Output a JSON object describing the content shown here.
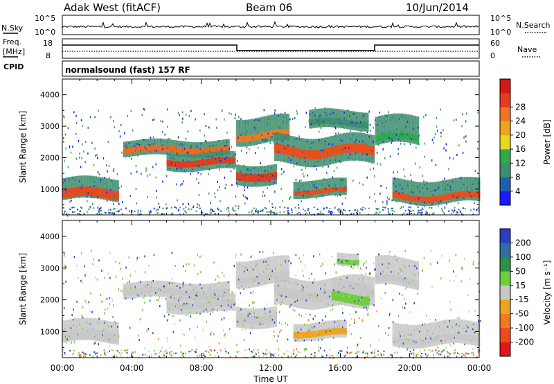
{
  "header": {
    "station": "Adak West (fitACF)",
    "beam": "Beam 06",
    "date": "10/Jun/2014"
  },
  "nsky_panel": {
    "left_label": "N.Sky",
    "left_ticks": [
      "10^5",
      "10^0"
    ],
    "right_ticks": [
      "10^5",
      "10^0"
    ],
    "right_label": "N.Search"
  },
  "freq_panel": {
    "left_label_1": "Freq.",
    "left_label_2": "[MHz]",
    "left_ticks": [
      "18",
      "8"
    ],
    "right_ticks": [
      "60",
      "0"
    ],
    "right_label": "Nave"
  },
  "cpid_panel": {
    "label": "CPID",
    "mode": "normalsound (fast) 157 RF"
  },
  "chart_data": [
    {
      "type": "heatmap",
      "name": "power",
      "ylabel": "Slant Range [km]",
      "xlabel": "",
      "ylim": [
        180,
        4500
      ],
      "yticks": [
        "1000",
        "2000",
        "3000",
        "4000"
      ],
      "xticks": [
        "00:00",
        "04:00",
        "08:00",
        "12:00",
        "16:00",
        "20:00",
        "00:00"
      ],
      "colorbar": {
        "label": "Power [dB]",
        "ticks": [
          "4",
          "8",
          "12",
          "16",
          "20",
          "24",
          "28"
        ],
        "colors": [
          "#1a1aff",
          "#1f5fb3",
          "#3f8f6f",
          "#2eaa4a",
          "#e6d81f",
          "#f0a31e",
          "#ef7522",
          "#e63a1c",
          "#d61717"
        ]
      },
      "bands": [
        {
          "t0": 0.0,
          "t1": 3.2,
          "lo": 650,
          "hi": 1350,
          "core_lo": 700,
          "core_hi": 1000,
          "core": "#e84a1c"
        },
        {
          "t0": 3.5,
          "t1": 9.6,
          "lo": 2050,
          "hi": 2550,
          "core_lo": 2150,
          "core_hi": 2350,
          "core": "#ee6a20"
        },
        {
          "t0": 6.0,
          "t1": 9.8,
          "lo": 1600,
          "hi": 2150,
          "core_lo": 1750,
          "core_hi": 1950,
          "core": "#e63a1c"
        },
        {
          "t0": 10.0,
          "t1": 12.2,
          "lo": 1150,
          "hi": 1800,
          "core_lo": 1300,
          "core_hi": 1550,
          "core": "#e63a1c"
        },
        {
          "t0": 10.0,
          "t1": 13.0,
          "lo": 2450,
          "hi": 3300,
          "core_lo": 2600,
          "core_hi": 2800,
          "core": "#ee7a20"
        },
        {
          "t0": 12.2,
          "t1": 17.8,
          "lo": 1800,
          "hi": 2700,
          "core_lo": 2050,
          "core_hi": 2350,
          "core": "#e8501c"
        },
        {
          "t0": 13.3,
          "t1": 16.2,
          "lo": 750,
          "hi": 1300,
          "core_lo": 850,
          "core_hi": 1000,
          "core": "#e8501c"
        },
        {
          "t0": 14.2,
          "t1": 17.5,
          "lo": 2900,
          "hi": 3500,
          "core_lo": 3000,
          "core_hi": 3200,
          "core": "#3f8f6f"
        },
        {
          "t0": 18.0,
          "t1": 20.5,
          "lo": 2400,
          "hi": 3300,
          "core_lo": 2500,
          "core_hi": 2700,
          "core": "#2eaa4a"
        },
        {
          "t0": 19.0,
          "t1": 24.0,
          "lo": 550,
          "hi": 1300,
          "core_lo": 650,
          "core_hi": 850,
          "core": "#e8501c"
        }
      ]
    },
    {
      "type": "heatmap",
      "name": "velocity",
      "ylabel": "Slant Range [km]",
      "xlabel": "Time UT",
      "ylim": [
        180,
        4500
      ],
      "yticks": [
        "1000",
        "2000",
        "3000",
        "4000"
      ],
      "xticks": [
        "00:00",
        "04:00",
        "08:00",
        "12:00",
        "16:00",
        "20:00",
        "00:00"
      ],
      "colorbar": {
        "label": "Velocity [m s⁻¹]",
        "ticks": [
          "200",
          "100",
          "50",
          "15",
          "-15",
          "-50",
          "-100",
          "-200"
        ],
        "colors": [
          "#2a3fbf",
          "#2f6f9f",
          "#2e8f4a",
          "#6fcf3a",
          "#c8c8c8",
          "#f0a31e",
          "#ef7a22",
          "#ee4a1c",
          "#e01717"
        ]
      },
      "bands": [
        {
          "t0": 0.0,
          "t1": 3.2,
          "lo": 650,
          "hi": 1350,
          "core_lo": 700,
          "core_hi": 1000,
          "core": "#c8c8c8"
        },
        {
          "t0": 3.5,
          "t1": 9.6,
          "lo": 2050,
          "hi": 2550,
          "core_lo": 2150,
          "core_hi": 2350,
          "core": "#c8c8c8"
        },
        {
          "t0": 6.0,
          "t1": 9.8,
          "lo": 1600,
          "hi": 2150,
          "core_lo": 1750,
          "core_hi": 1950,
          "core": "#c8c8c8"
        },
        {
          "t0": 10.0,
          "t1": 12.2,
          "lo": 1150,
          "hi": 1800,
          "core_lo": 1300,
          "core_hi": 1550,
          "core": "#c8c8c8"
        },
        {
          "t0": 10.0,
          "t1": 13.0,
          "lo": 2450,
          "hi": 3300,
          "core_lo": 2600,
          "core_hi": 2800,
          "core": "#c8c8c8"
        },
        {
          "t0": 12.2,
          "t1": 17.8,
          "lo": 1800,
          "hi": 2700,
          "core_lo": 2050,
          "core_hi": 2350,
          "core": "#c8c8c8"
        },
        {
          "t0": 13.3,
          "t1": 16.2,
          "lo": 750,
          "hi": 1300,
          "core_lo": 850,
          "core_hi": 1050,
          "core": "#f0a31e"
        },
        {
          "t0": 15.5,
          "t1": 17.5,
          "lo": 1800,
          "hi": 2600,
          "core_lo": 1900,
          "core_hi": 2200,
          "core": "#6fcf3a"
        },
        {
          "t0": 15.8,
          "t1": 17.0,
          "lo": 3100,
          "hi": 3500,
          "core_lo": 3150,
          "core_hi": 3300,
          "core": "#6fcf3a"
        },
        {
          "t0": 18.0,
          "t1": 20.5,
          "lo": 2400,
          "hi": 3300,
          "core_lo": 2500,
          "core_hi": 2700,
          "core": "#c8c8c8"
        },
        {
          "t0": 19.0,
          "t1": 24.0,
          "lo": 550,
          "hi": 1300,
          "core_lo": 650,
          "core_hi": 850,
          "core": "#c8c8c8"
        }
      ]
    }
  ]
}
